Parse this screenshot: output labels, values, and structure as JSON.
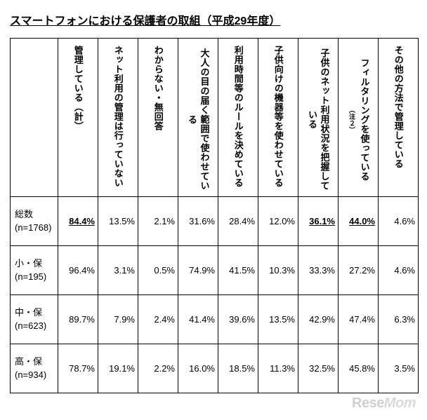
{
  "title": "スマートフォンにおける保護者の取組（平成29年度）",
  "columns": [
    {
      "label": "管理している（計）",
      "note": ""
    },
    {
      "label": "ネット利用の管理は行っていない",
      "note": ""
    },
    {
      "label": "わからない・無回答",
      "note": ""
    },
    {
      "label": "大人の目の届く範囲で使わせている",
      "note": ""
    },
    {
      "label": "利用時間等のルールを決めている",
      "note": ""
    },
    {
      "label": "子供向けの機器等を使わせている",
      "note": ""
    },
    {
      "label": "子供のネット利用状況を把握している",
      "note": ""
    },
    {
      "label": "フィルタリングを使っている",
      "note": "（注２）"
    },
    {
      "label": "その他の方法で管理している",
      "note": ""
    }
  ],
  "rows": [
    {
      "label_line1": "総数",
      "label_line2": "(n=1768)",
      "cells": [
        {
          "value": "84.4%",
          "bold": true
        },
        {
          "value": "13.5%",
          "bold": false
        },
        {
          "value": "2.1%",
          "bold": false
        },
        {
          "value": "31.6%",
          "bold": false
        },
        {
          "value": "28.4%",
          "bold": false
        },
        {
          "value": "12.0%",
          "bold": false
        },
        {
          "value": "36.1%",
          "bold": true
        },
        {
          "value": "44.0%",
          "bold": true
        },
        {
          "value": "4.6%",
          "bold": false
        }
      ]
    },
    {
      "label_line1": "小・保",
      "label_line2": "(n=195)",
      "cells": [
        {
          "value": "96.4%",
          "bold": false
        },
        {
          "value": "3.1%",
          "bold": false
        },
        {
          "value": "0.5%",
          "bold": false
        },
        {
          "value": "74.9%",
          "bold": false
        },
        {
          "value": "41.5%",
          "bold": false
        },
        {
          "value": "10.3%",
          "bold": false
        },
        {
          "value": "33.3%",
          "bold": false
        },
        {
          "value": "27.2%",
          "bold": false
        },
        {
          "value": "4.6%",
          "bold": false
        }
      ]
    },
    {
      "label_line1": "中・保",
      "label_line2": "(n=623)",
      "cells": [
        {
          "value": "89.7%",
          "bold": false
        },
        {
          "value": "7.9%",
          "bold": false
        },
        {
          "value": "2.4%",
          "bold": false
        },
        {
          "value": "41.4%",
          "bold": false
        },
        {
          "value": "39.6%",
          "bold": false
        },
        {
          "value": "13.5%",
          "bold": false
        },
        {
          "value": "42.9%",
          "bold": false
        },
        {
          "value": "47.4%",
          "bold": false
        },
        {
          "value": "6.3%",
          "bold": false
        }
      ]
    },
    {
      "label_line1": "高・保",
      "label_line2": "(n=934)",
      "cells": [
        {
          "value": "78.7%",
          "bold": false
        },
        {
          "value": "19.1%",
          "bold": false
        },
        {
          "value": "2.2%",
          "bold": false
        },
        {
          "value": "16.0%",
          "bold": false
        },
        {
          "value": "18.5%",
          "bold": false
        },
        {
          "value": "11.3%",
          "bold": false
        },
        {
          "value": "32.5%",
          "bold": false
        },
        {
          "value": "45.8%",
          "bold": false
        },
        {
          "value": "3.5%",
          "bold": false
        }
      ]
    }
  ],
  "watermark": {
    "part1": "Rese",
    "part2": "Mom"
  }
}
